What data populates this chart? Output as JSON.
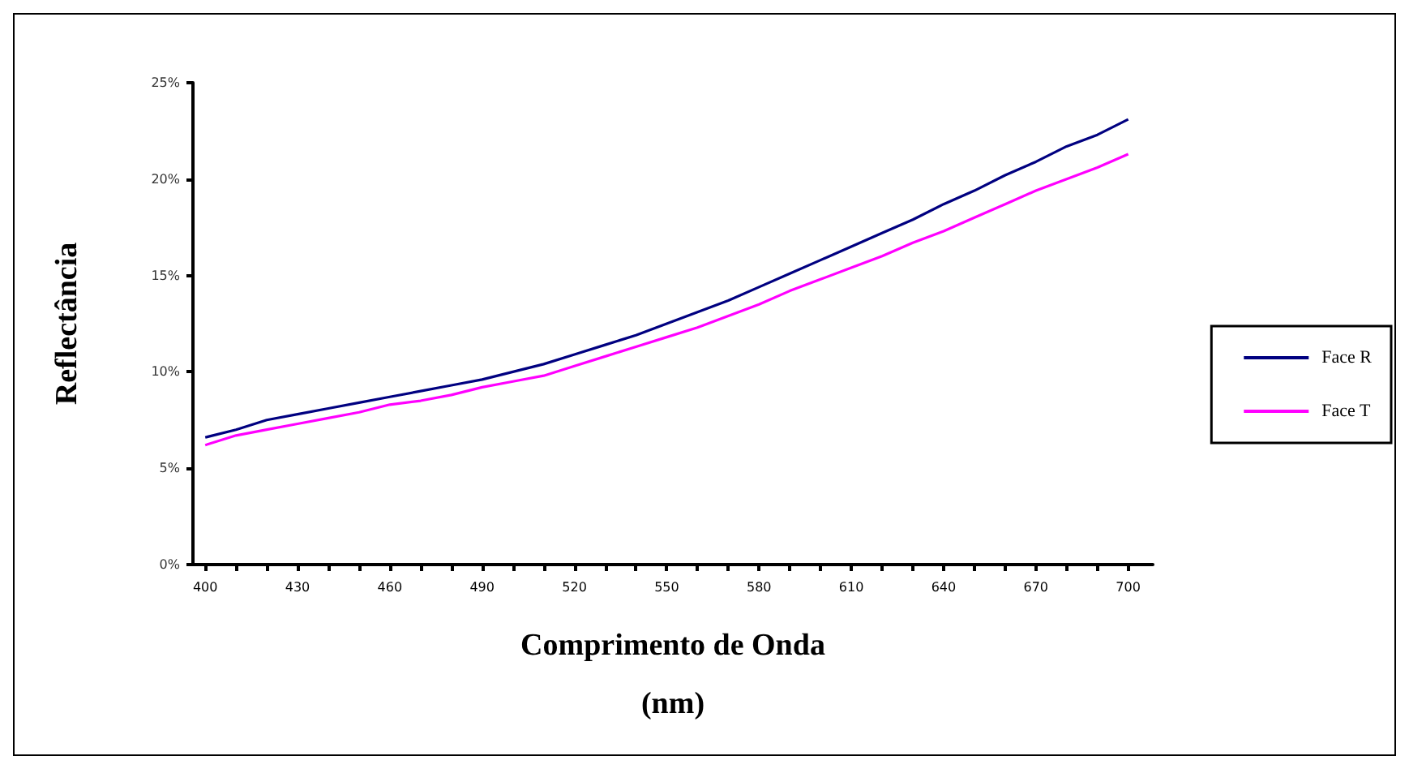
{
  "chart_data": {
    "type": "line",
    "xlabel": "Comprimento de Onda\n(nm)",
    "ylabel": "Reflectância",
    "x": [
      400,
      410,
      420,
      430,
      440,
      450,
      460,
      470,
      480,
      490,
      500,
      510,
      520,
      530,
      540,
      550,
      560,
      570,
      580,
      590,
      600,
      610,
      620,
      630,
      640,
      650,
      660,
      670,
      680,
      690,
      700
    ],
    "series": [
      {
        "name": "Face R",
        "color": "#000080",
        "values": [
          6.6,
          7.0,
          7.5,
          7.8,
          8.1,
          8.4,
          8.7,
          9.0,
          9.3,
          9.6,
          10.0,
          10.4,
          10.9,
          11.4,
          11.9,
          12.5,
          13.1,
          13.7,
          14.4,
          15.1,
          15.8,
          16.5,
          17.2,
          17.9,
          18.7,
          19.4,
          20.2,
          20.9,
          21.7,
          22.3,
          23.1
        ]
      },
      {
        "name": "Face T",
        "color": "#ff00ff",
        "values": [
          6.2,
          6.7,
          7.0,
          7.3,
          7.6,
          7.9,
          8.3,
          8.5,
          8.8,
          9.2,
          9.5,
          9.8,
          10.3,
          10.8,
          11.3,
          11.8,
          12.3,
          12.9,
          13.5,
          14.2,
          14.8,
          15.4,
          16.0,
          16.7,
          17.3,
          18.0,
          18.7,
          19.4,
          20.0,
          20.6,
          21.3
        ]
      }
    ],
    "xlim": [
      396,
      708
    ],
    "xticks": [
      400,
      {
        "value": 410,
        "label": null
      },
      {
        "value": 420,
        "label": null
      },
      430,
      {
        "value": 440,
        "label": null
      },
      {
        "value": 450,
        "label": null
      },
      460,
      {
        "value": 470,
        "label": null
      },
      {
        "value": 480,
        "label": null
      },
      490,
      {
        "value": 500,
        "label": null
      },
      {
        "value": 510,
        "label": null
      },
      520,
      {
        "value": 530,
        "label": null
      },
      {
        "value": 540,
        "label": null
      },
      550,
      {
        "value": 560,
        "label": null
      },
      {
        "value": 570,
        "label": null
      },
      580,
      {
        "value": 590,
        "label": null
      },
      {
        "value": 600,
        "label": null
      },
      610,
      {
        "value": 620,
        "label": null
      },
      {
        "value": 630,
        "label": null
      },
      640,
      {
        "value": 650,
        "label": null
      },
      {
        "value": 660,
        "label": null
      },
      670,
      {
        "value": 680,
        "label": null
      },
      {
        "value": 690,
        "label": null
      },
      700
    ],
    "ylim": [
      0,
      25
    ],
    "yticks": [
      {
        "value": 0,
        "label": "0%"
      },
      {
        "value": 5,
        "label": "5%"
      },
      {
        "value": 10,
        "label": "10%"
      },
      {
        "value": 15,
        "label": "15%"
      },
      {
        "value": 20,
        "label": "20%"
      },
      {
        "value": 25,
        "label": "25%"
      }
    ],
    "grid": false,
    "legend": "right",
    "marker": "none",
    "line_style": "solid"
  }
}
